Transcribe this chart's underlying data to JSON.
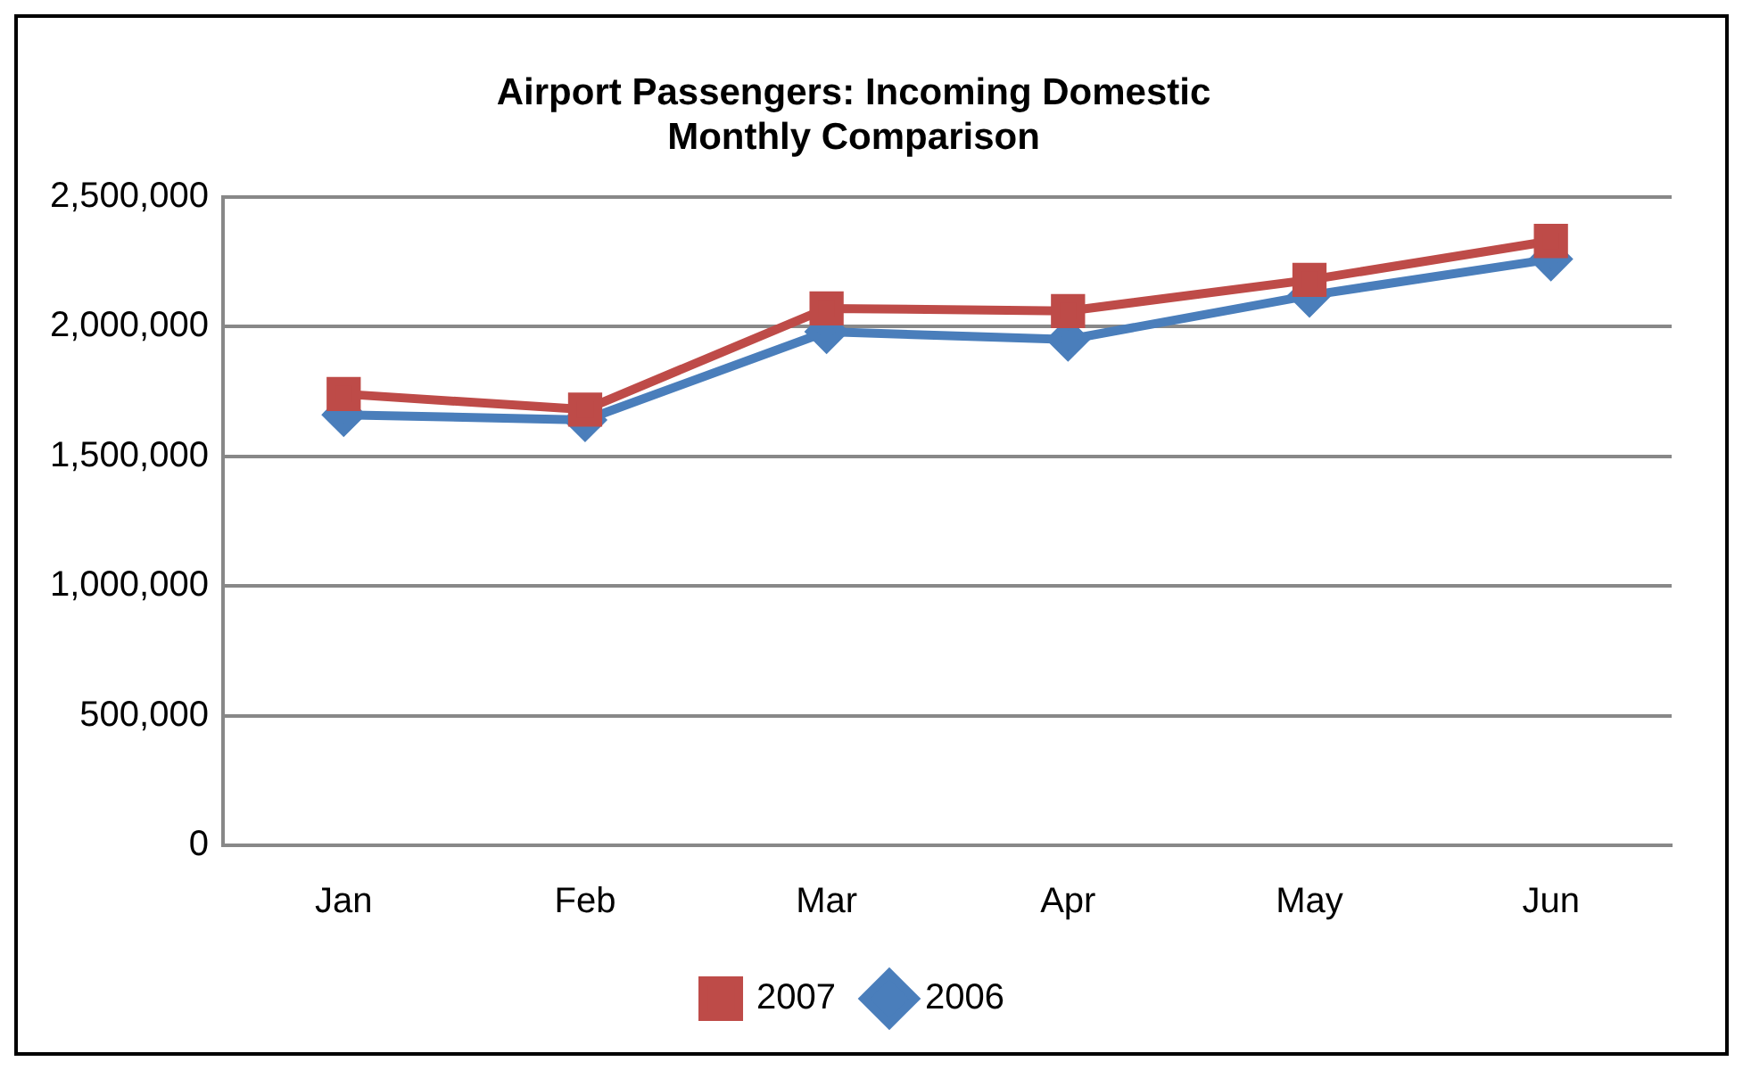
{
  "chart_data": {
    "type": "line",
    "title": [
      "Airport Passengers: Incoming Domestic",
      "Monthly Comparison"
    ],
    "categories": [
      "Jan",
      "Feb",
      "Mar",
      "Apr",
      "May",
      "Jun"
    ],
    "series": [
      {
        "name": "2006",
        "color": "#4a7ebb",
        "marker": "diamond",
        "values": [
          1660000,
          1640000,
          1980000,
          1950000,
          2120000,
          2260000
        ]
      },
      {
        "name": "2007",
        "color": "#be4b48",
        "marker": "square",
        "values": [
          1740000,
          1680000,
          2070000,
          2060000,
          2180000,
          2330000
        ]
      }
    ],
    "ylim": [
      0,
      2500000
    ],
    "yticks": [
      {
        "value": 0,
        "label": "0"
      },
      {
        "value": 500000,
        "label": "500,000"
      },
      {
        "value": 1000000,
        "label": "1,000,000"
      },
      {
        "value": 1500000,
        "label": "1,500,000"
      },
      {
        "value": 2000000,
        "label": "2,000,000"
      },
      {
        "value": 2500000,
        "label": "2,500,000"
      }
    ],
    "grid": "y",
    "legend": "bottom",
    "line_style": "solid"
  }
}
